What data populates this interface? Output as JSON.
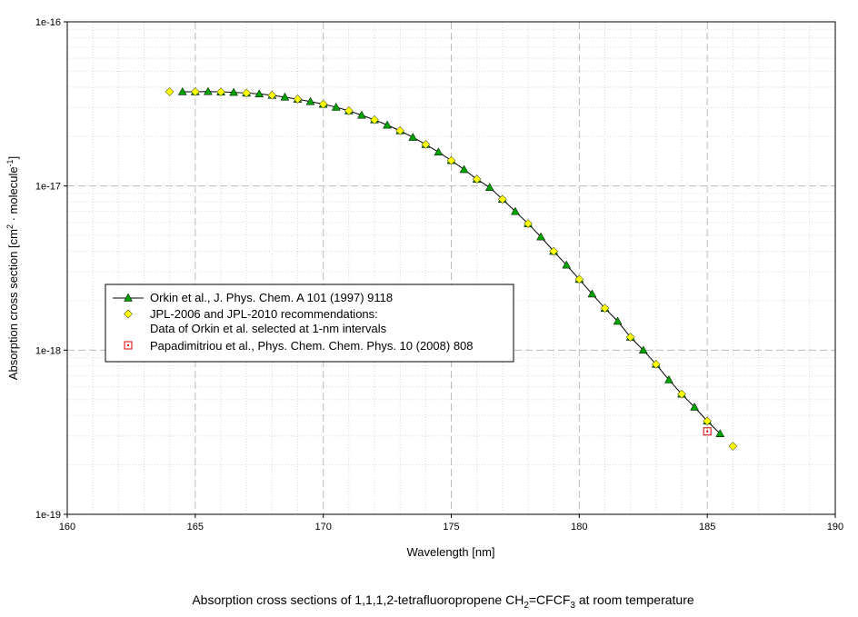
{
  "caption": {
    "before": "Absorption cross sections of 1,1,1,2-tetrafluoropropene CH",
    "sub1": "2",
    "middle": "=CFCF",
    "sub2": "3",
    "after": " at room temperature"
  },
  "chart_data": {
    "type": "scatter",
    "title": "",
    "xlabel": "Wavelength [nm]",
    "ylabel": {
      "main": "Absorption cross section [cm",
      "sup1": "2",
      "mid": " · molecule",
      "sup2": "-1",
      "end": "]"
    },
    "xlim": [
      160,
      190
    ],
    "ylim": [
      1e-19,
      1e-16
    ],
    "yscale": "log",
    "x_ticks": [
      "160",
      "165",
      "170",
      "175",
      "180",
      "185",
      "190"
    ],
    "y_ticks": [
      "1e-19",
      "1e-18",
      "1e-17",
      "1e-16"
    ],
    "grid": true,
    "legend_position": "middle-left",
    "series": [
      {
        "name": "Orkin et al., J. Phys. Chem. A 101 (1997) 9118",
        "marker": "triangle",
        "line": true,
        "color": "#00a000",
        "x": [
          164.5,
          165,
          165.5,
          166,
          166.5,
          167,
          167.5,
          168,
          168.5,
          169,
          169.5,
          170,
          170.5,
          171,
          171.5,
          172,
          172.5,
          173,
          173.5,
          174,
          174.5,
          175,
          175.5,
          176,
          176.5,
          177,
          177.5,
          178,
          178.5,
          179,
          179.5,
          180,
          180.5,
          181,
          181.5,
          182,
          182.5,
          183,
          183.5,
          184,
          184.5,
          185,
          185.5
        ],
        "y": [
          3.75e-17,
          3.75e-17,
          3.76e-17,
          3.74e-17,
          3.72e-17,
          3.68e-17,
          3.64e-17,
          3.57e-17,
          3.48e-17,
          3.38e-17,
          3.27e-17,
          3.15e-17,
          3.02e-17,
          2.87e-17,
          2.7e-17,
          2.53e-17,
          2.35e-17,
          2.17e-17,
          1.98e-17,
          1.79e-17,
          1.61e-17,
          1.43e-17,
          1.26e-17,
          1.1e-17,
          9.8e-18,
          8.3e-18,
          7e-18,
          5.9e-18,
          4.9e-18,
          4e-18,
          3.3e-18,
          2.7e-18,
          2.2e-18,
          1.8e-18,
          1.5e-18,
          1.2e-18,
          1e-18,
          8.2e-19,
          6.6e-19,
          5.4e-19,
          4.5e-19,
          3.7e-19,
          3.1e-19
        ]
      },
      {
        "name": "JPL-2006 and JPL-2010 recommendations:",
        "name2": "Data of Orkin et al. selected at 1-nm intervals",
        "marker": "diamond",
        "line": false,
        "color": "#ffff00",
        "x": [
          164,
          165,
          166,
          167,
          168,
          169,
          170,
          171,
          172,
          173,
          174,
          175,
          176,
          177,
          178,
          179,
          180,
          181,
          182,
          183,
          184,
          185,
          186
        ],
        "y": [
          3.75e-17,
          3.75e-17,
          3.74e-17,
          3.68e-17,
          3.57e-17,
          3.38e-17,
          3.15e-17,
          2.87e-17,
          2.53e-17,
          2.17e-17,
          1.79e-17,
          1.43e-17,
          1.1e-17,
          8.3e-18,
          5.9e-18,
          4e-18,
          2.7e-18,
          1.8e-18,
          1.2e-18,
          8.2e-19,
          5.4e-19,
          3.7e-19,
          2.6e-19
        ]
      },
      {
        "name": "Papadimitriou et al., Phys. Chem. Chem. Phys. 10 (2008) 808",
        "marker": "square",
        "line": false,
        "color": "#e00000",
        "x": [
          185
        ],
        "y": [
          3.2e-19
        ]
      }
    ]
  }
}
